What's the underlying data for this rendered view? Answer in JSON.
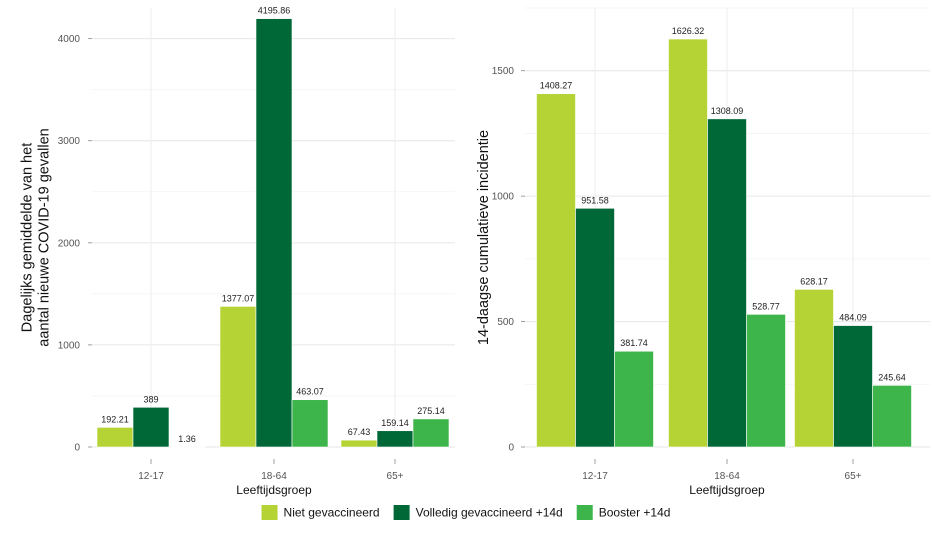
{
  "chart_data": [
    {
      "type": "bar",
      "title": "",
      "xlabel": "Leeftijdsgroep",
      "ylabel_lines": [
        "Dagelijks gemiddelde van het",
        "aantal nieuwe COVID-19 gevallen"
      ],
      "categories": [
        "12-17",
        "18-64",
        "65+"
      ],
      "series": [
        {
          "name": "Niet gevaccineerd",
          "values": [
            192.21,
            1377.07,
            67.43
          ]
        },
        {
          "name": "Volledig gevaccineerd +14d",
          "values": [
            389,
            4195.86,
            159.14
          ]
        },
        {
          "name": "Booster +14d",
          "values": [
            1.36,
            463.07,
            275.14
          ]
        }
      ],
      "value_labels": [
        [
          "192.21",
          "1377.07",
          "67.43"
        ],
        [
          "389",
          "4195.86",
          "159.14"
        ],
        [
          "1.36",
          "463.07",
          "275.14"
        ]
      ],
      "yticks": [
        0,
        1000,
        2000,
        3000,
        4000
      ],
      "ylim": [
        0,
        4300
      ],
      "grid": true
    },
    {
      "type": "bar",
      "title": "",
      "xlabel": "Leeftijdsgroep",
      "ylabel_lines": [
        "14-daagse cumulatieve incidentie"
      ],
      "categories": [
        "12-17",
        "18-64",
        "65+"
      ],
      "series": [
        {
          "name": "Niet gevaccineerd",
          "values": [
            1408.27,
            1626.32,
            628.17
          ]
        },
        {
          "name": "Volledig gevaccineerd +14d",
          "values": [
            951.58,
            1308.09,
            484.09
          ]
        },
        {
          "name": "Booster +14d",
          "values": [
            381.74,
            528.77,
            245.64
          ]
        }
      ],
      "value_labels": [
        [
          "1408.27",
          "1626.32",
          "628.17"
        ],
        [
          "951.58",
          "1308.09",
          "484.09"
        ],
        [
          "381.74",
          "528.77",
          "245.64"
        ]
      ],
      "yticks": [
        0,
        500,
        1000,
        1500
      ],
      "ylim": [
        0,
        1750
      ],
      "grid": true
    }
  ],
  "legend": {
    "placement": "bottom",
    "items": [
      {
        "label": "Niet gevaccineerd",
        "color": "#b5d334"
      },
      {
        "label": "Volledig gevaccineerd +14d",
        "color": "#006837"
      },
      {
        "label": "Booster +14d",
        "color": "#3db54a"
      }
    ]
  },
  "colors": [
    "#b5d334",
    "#006837",
    "#3db54a"
  ]
}
